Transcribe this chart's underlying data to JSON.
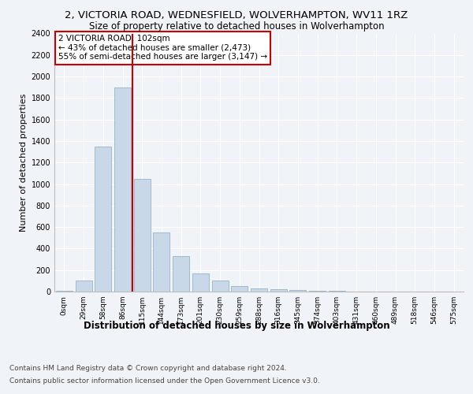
{
  "title_line1": "2, VICTORIA ROAD, WEDNESFIELD, WOLVERHAMPTON, WV11 1RZ",
  "title_line2": "Size of property relative to detached houses in Wolverhampton",
  "xlabel": "Distribution of detached houses by size in Wolverhampton",
  "ylabel": "Number of detached properties",
  "footer_line1": "Contains HM Land Registry data © Crown copyright and database right 2024.",
  "footer_line2": "Contains public sector information licensed under the Open Government Licence v3.0.",
  "annotation_line1": "2 VICTORIA ROAD: 102sqm",
  "annotation_line2": "← 43% of detached houses are smaller (2,473)",
  "annotation_line3": "55% of semi-detached houses are larger (3,147) →",
  "bar_color": "#c8d8e8",
  "bar_edge_color": "#8aaabb",
  "vline_color": "#cc0000",
  "vline_x": 3.5,
  "categories": [
    "0sqm",
    "29sqm",
    "58sqm",
    "86sqm",
    "115sqm",
    "144sqm",
    "173sqm",
    "201sqm",
    "230sqm",
    "259sqm",
    "288sqm",
    "316sqm",
    "345sqm",
    "374sqm",
    "403sqm",
    "431sqm",
    "460sqm",
    "489sqm",
    "518sqm",
    "546sqm",
    "575sqm"
  ],
  "values": [
    5,
    100,
    1350,
    1900,
    1050,
    550,
    330,
    165,
    100,
    50,
    30,
    20,
    15,
    10,
    7,
    3,
    2,
    1,
    0,
    1,
    0
  ],
  "ylim": [
    0,
    2400
  ],
  "yticks": [
    0,
    200,
    400,
    600,
    800,
    1000,
    1200,
    1400,
    1600,
    1800,
    2000,
    2200,
    2400
  ],
  "background_color": "#f0f4f8",
  "plot_bg_color": "#f0f4f8",
  "grid_color": "#ffffff",
  "title_fontsize": 9.5,
  "subtitle_fontsize": 8.5,
  "annotation_box_color": "#ffffff",
  "annotation_box_edge": "#cc0000"
}
